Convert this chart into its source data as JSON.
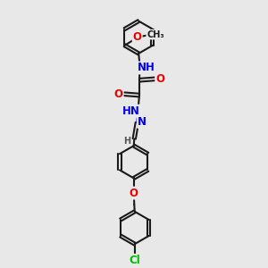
{
  "bg_color": "#e8e8e8",
  "bond_color": "#1a1a1a",
  "bond_width": 1.5,
  "dbo": 0.06,
  "atom_colors": {
    "N": "#0000ee",
    "O": "#ee0000",
    "Cl": "#00bb00",
    "C": "#1a1a1a",
    "H": "#555555"
  },
  "fs": 8.5,
  "fs2": 7.0,
  "figsize": [
    3.0,
    3.0
  ],
  "dpi": 100,
  "xlim": [
    -1.5,
    3.5
  ],
  "ylim": [
    -0.5,
    10.5
  ]
}
